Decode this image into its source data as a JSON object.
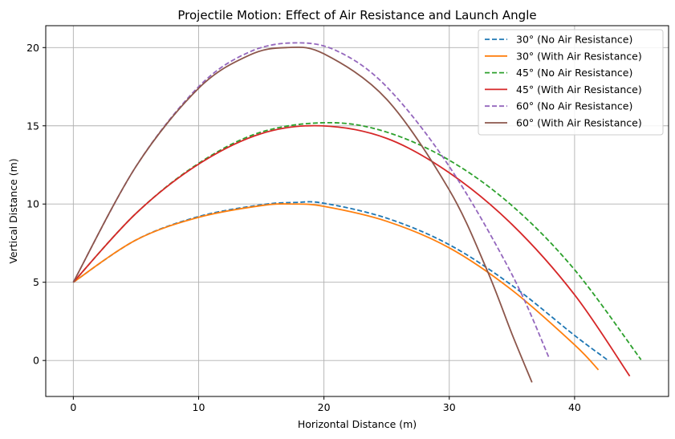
{
  "chart_data": {
    "type": "line",
    "title": "Projectile Motion: Effect of Air Resistance and Launch Angle",
    "xlabel": "Horizontal Distance (m)",
    "ylabel": "Vertical Distance (m)",
    "xlim": [
      -2.2,
      47.5
    ],
    "ylim": [
      -2.3,
      21.4
    ],
    "xticks": [
      0,
      10,
      20,
      30,
      40
    ],
    "yticks": [
      0,
      5,
      10,
      15,
      20
    ],
    "grid": true,
    "legend_position": "top-right",
    "series": [
      {
        "name": "30° (No Air Resistance)",
        "color": "#1f77b4",
        "dashed": true,
        "points": [
          [
            0,
            5
          ],
          [
            5,
            7.7
          ],
          [
            10,
            9.2
          ],
          [
            15,
            9.95
          ],
          [
            17.7,
            10.1
          ],
          [
            20,
            10.05
          ],
          [
            25,
            9.1
          ],
          [
            30,
            7.4
          ],
          [
            35,
            4.8
          ],
          [
            40,
            1.6
          ],
          [
            42.6,
            0.05
          ]
        ]
      },
      {
        "name": "30° (With Air Resistance)",
        "color": "#ff7f0e",
        "dashed": false,
        "points": [
          [
            0,
            5
          ],
          [
            5,
            7.7
          ],
          [
            10,
            9.15
          ],
          [
            15,
            9.9
          ],
          [
            17.5,
            10.0
          ],
          [
            20,
            9.85
          ],
          [
            25,
            8.9
          ],
          [
            30,
            7.2
          ],
          [
            35,
            4.5
          ],
          [
            40,
            1.0
          ],
          [
            41.9,
            -0.6
          ]
        ]
      },
      {
        "name": "45° (No Air Resistance)",
        "color": "#2ca02c",
        "dashed": true,
        "points": [
          [
            0,
            5
          ],
          [
            5,
            9.4
          ],
          [
            10,
            12.6
          ],
          [
            15,
            14.6
          ],
          [
            20.4,
            15.2
          ],
          [
            25,
            14.6
          ],
          [
            30,
            12.8
          ],
          [
            35,
            9.9
          ],
          [
            40,
            5.8
          ],
          [
            45.3,
            0.05
          ]
        ]
      },
      {
        "name": "45° (With Air Resistance)",
        "color": "#d62728",
        "dashed": false,
        "points": [
          [
            0,
            5
          ],
          [
            5,
            9.4
          ],
          [
            10,
            12.55
          ],
          [
            15,
            14.5
          ],
          [
            19.8,
            15.0
          ],
          [
            25,
            14.2
          ],
          [
            30,
            12.0
          ],
          [
            35,
            8.7
          ],
          [
            40,
            4.2
          ],
          [
            44.4,
            -1.0
          ]
        ]
      },
      {
        "name": "60° (No Air Resistance)",
        "color": "#9467bd",
        "dashed": true,
        "points": [
          [
            0,
            5
          ],
          [
            5,
            12.4
          ],
          [
            10,
            17.5
          ],
          [
            14,
            19.7
          ],
          [
            17.6,
            20.3
          ],
          [
            21,
            19.8
          ],
          [
            25,
            17.5
          ],
          [
            30,
            12.4
          ],
          [
            35,
            5.5
          ],
          [
            38,
            0.1
          ]
        ]
      },
      {
        "name": "60° (With Air Resistance)",
        "color": "#8c564b",
        "dashed": false,
        "points": [
          [
            0,
            5
          ],
          [
            5,
            12.4
          ],
          [
            10,
            17.4
          ],
          [
            14,
            19.5
          ],
          [
            17,
            20.0
          ],
          [
            20,
            19.6
          ],
          [
            25,
            16.7
          ],
          [
            30,
            10.9
          ],
          [
            33,
            5.8
          ],
          [
            35,
            1.7
          ],
          [
            36.6,
            -1.4
          ]
        ]
      }
    ]
  }
}
